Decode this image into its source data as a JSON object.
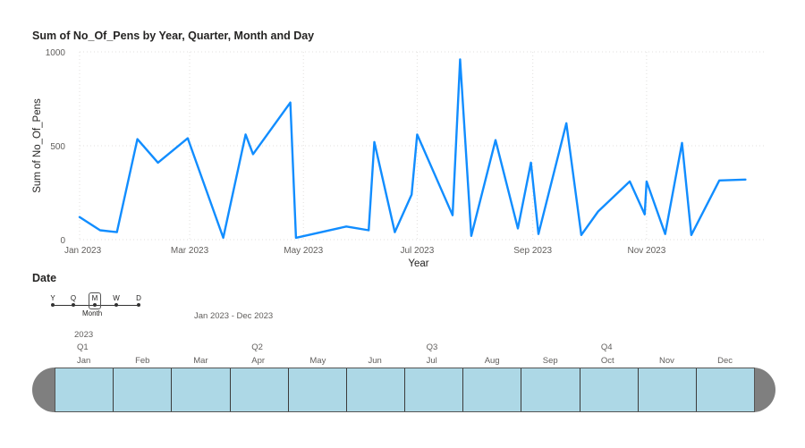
{
  "chart_data": {
    "type": "line",
    "title": "Sum of No_Of_Pens by Year, Quarter, Month and Day",
    "xlabel": "Year",
    "ylabel": "Sum of No_Of_Pens",
    "ylim": [
      0,
      1000
    ],
    "yticks": [
      0,
      500,
      1000
    ],
    "x_range": [
      "2023-01-01",
      "2023-12-31"
    ],
    "xticks": [
      {
        "date": "2023-01-01",
        "label": "Jan 2023"
      },
      {
        "date": "2023-03-01",
        "label": "Mar 2023"
      },
      {
        "date": "2023-05-01",
        "label": "May 2023"
      },
      {
        "date": "2023-07-01",
        "label": "Jul 2023"
      },
      {
        "date": "2023-09-01",
        "label": "Sep 2023"
      },
      {
        "date": "2023-11-01",
        "label": "Nov 2023"
      }
    ],
    "grid": true,
    "color": "#118dff",
    "series": [
      {
        "x": [
          "2023-01-01",
          "2023-01-12",
          "2023-01-21",
          "2023-02-01",
          "2023-02-12",
          "2023-02-28",
          "2023-03-19",
          "2023-03-31",
          "2023-04-04",
          "2023-04-24",
          "2023-04-27",
          "2023-05-24",
          "2023-06-05",
          "2023-06-08",
          "2023-06-19",
          "2023-06-28",
          "2023-07-01",
          "2023-07-20",
          "2023-07-24",
          "2023-07-30",
          "2023-08-12",
          "2023-08-24",
          "2023-08-31",
          "2023-09-04",
          "2023-09-19",
          "2023-09-27",
          "2023-10-06",
          "2023-10-23",
          "2023-10-31",
          "2023-11-01",
          "2023-11-11",
          "2023-11-20",
          "2023-11-25",
          "2023-12-10",
          "2023-12-24"
        ],
        "values": [
          120,
          50,
          40,
          535,
          410,
          540,
          10,
          560,
          455,
          730,
          10,
          70,
          50,
          520,
          40,
          240,
          560,
          130,
          960,
          20,
          530,
          60,
          410,
          30,
          620,
          25,
          150,
          310,
          135,
          310,
          30,
          515,
          25,
          315,
          320
        ]
      }
    ]
  },
  "slicer": {
    "title": "Date",
    "granularity_letters": [
      "Y",
      "Q",
      "M",
      "W",
      "D"
    ],
    "granularity_selected": "Month",
    "range_text": "Jan 2023 - Dec 2023",
    "year": "2023",
    "quarters": [
      "Q1",
      "Q2",
      "Q3",
      "Q4"
    ],
    "months": [
      "Jan",
      "Feb",
      "Mar",
      "Apr",
      "May",
      "Jun",
      "Jul",
      "Aug",
      "Sep",
      "Oct",
      "Nov",
      "Dec"
    ],
    "selected_color": "#add8e6",
    "cap_color": "#7f7f7f"
  }
}
